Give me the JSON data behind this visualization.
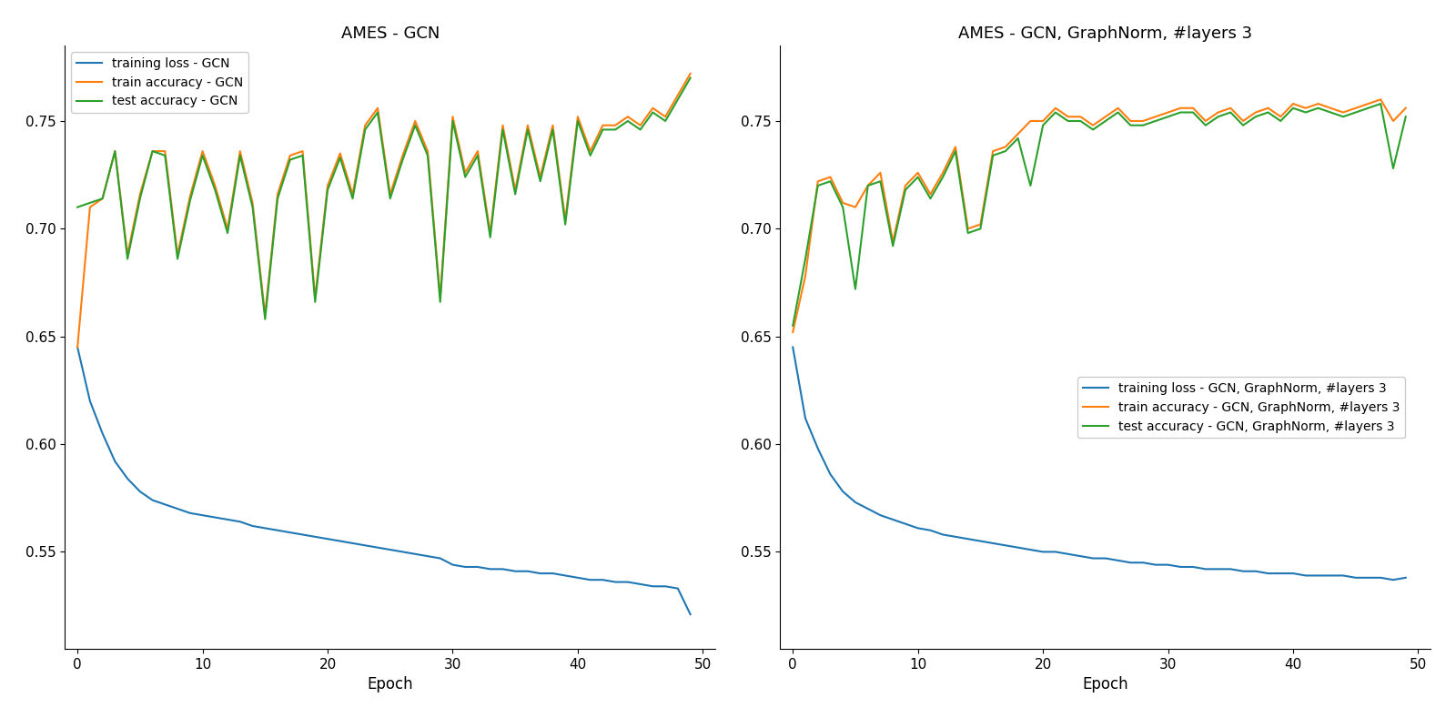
{
  "title1": "AMES - GCN",
  "title2": "AMES - GCN, GraphNorm, #layers 3",
  "xlabel": "Epoch",
  "legend1": [
    "training loss - GCN",
    "train accuracy - GCN",
    "test accuracy - GCN"
  ],
  "legend2": [
    "training loss - GCN, GraphNorm, #layers 3",
    "train accuracy - GCN, GraphNorm, #layers 3",
    "test accuracy - GCN, GraphNorm, #layers 3"
  ],
  "colors": [
    "#1f77b4",
    "#ff7f0e",
    "#2ca02c"
  ],
  "loss1": [
    0.645,
    0.62,
    0.605,
    0.592,
    0.584,
    0.578,
    0.574,
    0.572,
    0.57,
    0.568,
    0.567,
    0.566,
    0.565,
    0.564,
    0.562,
    0.561,
    0.56,
    0.559,
    0.558,
    0.557,
    0.556,
    0.555,
    0.554,
    0.553,
    0.552,
    0.551,
    0.55,
    0.549,
    0.548,
    0.547,
    0.544,
    0.543,
    0.543,
    0.542,
    0.542,
    0.541,
    0.541,
    0.54,
    0.54,
    0.539,
    0.538,
    0.537,
    0.537,
    0.536,
    0.536,
    0.535,
    0.534,
    0.534,
    0.533,
    0.521
  ],
  "train_acc1": [
    0.645,
    0.71,
    0.714,
    0.736,
    0.688,
    0.716,
    0.736,
    0.736,
    0.688,
    0.715,
    0.736,
    0.72,
    0.7,
    0.736,
    0.712,
    0.66,
    0.716,
    0.734,
    0.736,
    0.668,
    0.72,
    0.735,
    0.716,
    0.748,
    0.756,
    0.716,
    0.734,
    0.75,
    0.736,
    0.668,
    0.752,
    0.726,
    0.736,
    0.698,
    0.748,
    0.718,
    0.748,
    0.724,
    0.748,
    0.704,
    0.752,
    0.736,
    0.748,
    0.748,
    0.752,
    0.748,
    0.756,
    0.752,
    0.762,
    0.772
  ],
  "test_acc1": [
    0.71,
    0.712,
    0.714,
    0.736,
    0.686,
    0.714,
    0.736,
    0.734,
    0.686,
    0.713,
    0.734,
    0.718,
    0.698,
    0.734,
    0.71,
    0.658,
    0.714,
    0.732,
    0.734,
    0.666,
    0.718,
    0.733,
    0.714,
    0.746,
    0.754,
    0.714,
    0.732,
    0.748,
    0.734,
    0.666,
    0.75,
    0.724,
    0.734,
    0.696,
    0.746,
    0.716,
    0.746,
    0.722,
    0.746,
    0.702,
    0.75,
    0.734,
    0.746,
    0.746,
    0.75,
    0.746,
    0.754,
    0.75,
    0.76,
    0.77
  ],
  "loss2": [
    0.645,
    0.612,
    0.598,
    0.586,
    0.578,
    0.573,
    0.57,
    0.567,
    0.565,
    0.563,
    0.561,
    0.56,
    0.558,
    0.557,
    0.556,
    0.555,
    0.554,
    0.553,
    0.552,
    0.551,
    0.55,
    0.55,
    0.549,
    0.548,
    0.547,
    0.547,
    0.546,
    0.545,
    0.545,
    0.544,
    0.544,
    0.543,
    0.543,
    0.542,
    0.542,
    0.542,
    0.541,
    0.541,
    0.54,
    0.54,
    0.54,
    0.539,
    0.539,
    0.539,
    0.539,
    0.538,
    0.538,
    0.538,
    0.537,
    0.538
  ],
  "train_acc2": [
    0.652,
    0.678,
    0.722,
    0.724,
    0.712,
    0.71,
    0.72,
    0.726,
    0.694,
    0.72,
    0.726,
    0.716,
    0.726,
    0.738,
    0.7,
    0.702,
    0.736,
    0.738,
    0.744,
    0.75,
    0.75,
    0.756,
    0.752,
    0.752,
    0.748,
    0.752,
    0.756,
    0.75,
    0.75,
    0.752,
    0.754,
    0.756,
    0.756,
    0.75,
    0.754,
    0.756,
    0.75,
    0.754,
    0.756,
    0.752,
    0.758,
    0.756,
    0.758,
    0.756,
    0.754,
    0.756,
    0.758,
    0.76,
    0.75,
    0.756
  ],
  "test_acc2": [
    0.655,
    0.686,
    0.72,
    0.722,
    0.71,
    0.672,
    0.72,
    0.722,
    0.692,
    0.718,
    0.724,
    0.714,
    0.724,
    0.736,
    0.698,
    0.7,
    0.734,
    0.736,
    0.742,
    0.72,
    0.748,
    0.754,
    0.75,
    0.75,
    0.746,
    0.75,
    0.754,
    0.748,
    0.748,
    0.75,
    0.752,
    0.754,
    0.754,
    0.748,
    0.752,
    0.754,
    0.748,
    0.752,
    0.754,
    0.75,
    0.756,
    0.754,
    0.756,
    0.754,
    0.752,
    0.754,
    0.756,
    0.758,
    0.728,
    0.752
  ],
  "ylim": [
    0.505,
    0.785
  ],
  "yticks": [
    0.55,
    0.6,
    0.65,
    0.7,
    0.75
  ]
}
